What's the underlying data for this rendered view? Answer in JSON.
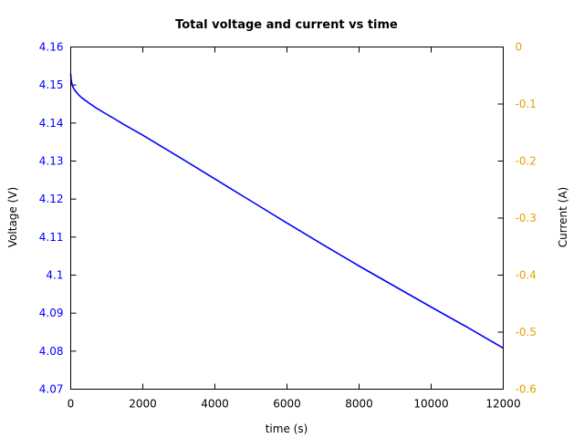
{
  "chart_data": {
    "type": "line",
    "title": "Total voltage and current vs time",
    "xlabel": "time (s)",
    "ylabel_left": "Voltage (V)",
    "ylabel_right": "Current (A)",
    "xlim": [
      0,
      12000
    ],
    "ylim_left": [
      4.07,
      4.16
    ],
    "ylim_right": [
      -0.6,
      0
    ],
    "x_ticks": [
      "0",
      "2000",
      "4000",
      "6000",
      "8000",
      "10000",
      "12000"
    ],
    "y_left_ticks": [
      "4.07",
      "4.08",
      "4.09",
      "4.1",
      "4.11",
      "4.12",
      "4.13",
      "4.14",
      "4.15",
      "4.16"
    ],
    "y_right_ticks": [
      "-0.6",
      "-0.5",
      "-0.4",
      "-0.3",
      "-0.2",
      "-0.1",
      "0"
    ],
    "grid": false,
    "colors": {
      "voltage": "#0000ff",
      "left_axis": "#0000ff",
      "right_axis": "#e6a100",
      "frame": "#000000"
    },
    "series": [
      {
        "axis": "left",
        "color": "#0000ff",
        "x": [
          0,
          10,
          30,
          60,
          100,
          150,
          200,
          300,
          400,
          500,
          700,
          1000,
          1500,
          2000,
          3000,
          4000,
          5000,
          6000,
          7000,
          8000,
          9000,
          10000,
          11000,
          12000
        ],
        "y": [
          4.153,
          4.1515,
          4.1505,
          4.1495,
          4.1488,
          4.1482,
          4.1476,
          4.1467,
          4.146,
          4.1453,
          4.144,
          4.1423,
          4.1395,
          4.1368,
          4.1311,
          4.1253,
          4.1195,
          4.1137,
          4.108,
          4.1024,
          4.097,
          4.0916,
          4.0863,
          4.0808
        ]
      }
    ]
  }
}
